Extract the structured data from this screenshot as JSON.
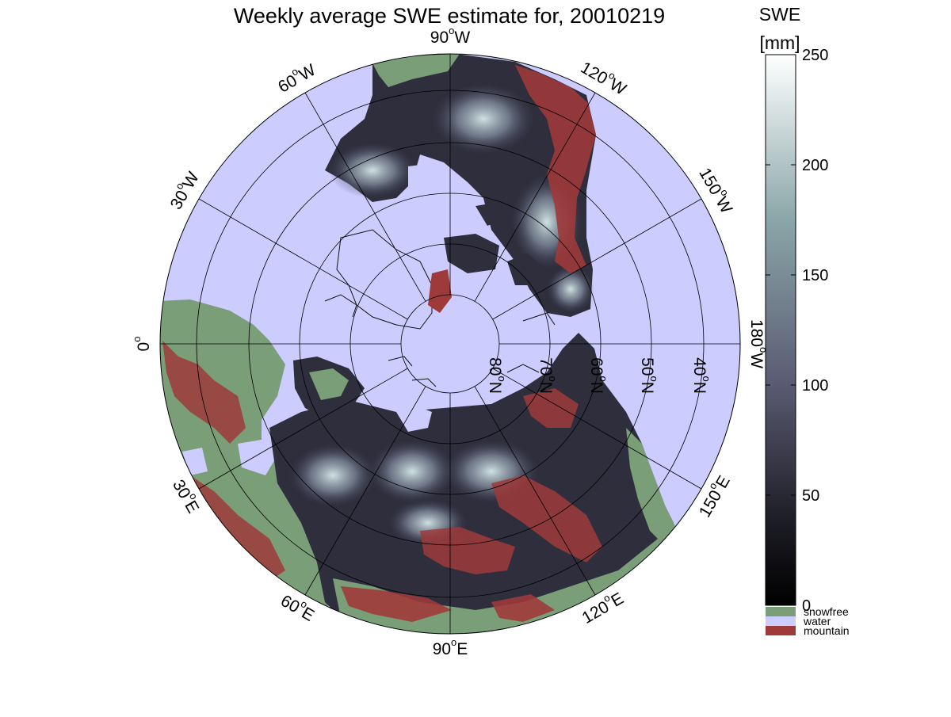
{
  "title": "Weekly average SWE estimate for, 20010219",
  "colorbar": {
    "title_line1": "SWE",
    "title_line2": "[mm]",
    "min": 0,
    "max": 250,
    "ticks": [
      "0",
      "50",
      "100",
      "150",
      "200",
      "250"
    ],
    "categories": [
      {
        "label": "snowfree",
        "color": "#7a9e78"
      },
      {
        "label": "water",
        "color": "#ccccff"
      },
      {
        "label": "mountain",
        "color": "#9e3a3a"
      }
    ]
  },
  "map": {
    "projection": "north polar stereographic",
    "longitude_labels": [
      {
        "deg": "90",
        "hem": "W"
      },
      {
        "deg": "120",
        "hem": "W"
      },
      {
        "deg": "150",
        "hem": "W"
      },
      {
        "deg": "180",
        "hem": "W"
      },
      {
        "deg": "150",
        "hem": "E"
      },
      {
        "deg": "120",
        "hem": "E"
      },
      {
        "deg": "90",
        "hem": "E"
      },
      {
        "deg": "60",
        "hem": "E"
      },
      {
        "deg": "30",
        "hem": "E"
      },
      {
        "deg": "0",
        "hem": ""
      },
      {
        "deg": "30",
        "hem": "W"
      },
      {
        "deg": "60",
        "hem": "W"
      }
    ],
    "latitude_labels": [
      {
        "deg": "80",
        "hem": "N"
      },
      {
        "deg": "70",
        "hem": "N"
      },
      {
        "deg": "60",
        "hem": "N"
      },
      {
        "deg": "50",
        "hem": "N"
      },
      {
        "deg": "40",
        "hem": "N"
      }
    ],
    "colors": {
      "water": "#ccccff",
      "snowfree": "#7a9e78",
      "mountain": "#9e3a3a",
      "snow_dark": "#2a2a38",
      "snow_mid": "#6a6a84",
      "snow_light": "#c8dcd8"
    }
  }
}
